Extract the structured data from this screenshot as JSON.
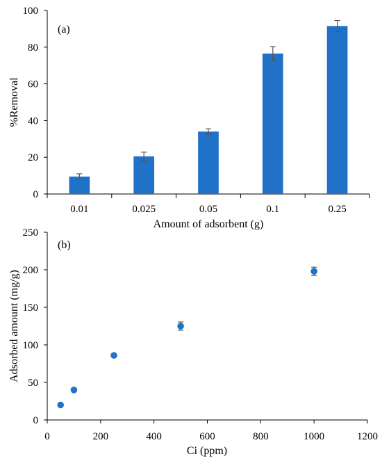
{
  "chart_data": [
    {
      "type": "bar",
      "panel_label": "(a)",
      "categories": [
        "0.01",
        "0.025",
        "0.05",
        "0.1",
        "0.25"
      ],
      "values": [
        9.5,
        20.5,
        34,
        76.5,
        91.5
      ],
      "errors": [
        1.5,
        2.3,
        1.5,
        3.8,
        3.0
      ],
      "ylabel": "%Removal",
      "xlabel": "Amount of adsorbent (g)",
      "ylim": [
        0,
        100
      ],
      "yticks": [
        "0",
        "20",
        "40",
        "60",
        "80",
        "100"
      ],
      "bar_color": "#1f72c8",
      "grid": false
    },
    {
      "type": "scatter",
      "panel_label": "(b)",
      "x": [
        50,
        100,
        250,
        500,
        1000
      ],
      "y": [
        20,
        40,
        86,
        125,
        198
      ],
      "errors": [
        0,
        0,
        0,
        5.5,
        5.5
      ],
      "ylabel": "Adsorbed amount (mg/g)",
      "xlabel": "Ci (ppm)",
      "xlim": [
        0,
        1200
      ],
      "ylim": [
        0,
        250
      ],
      "xticks": [
        "0",
        "200",
        "400",
        "600",
        "800",
        "1000",
        "1200"
      ],
      "yticks": [
        "0",
        "50",
        "100",
        "150",
        "200",
        "250"
      ],
      "marker_color": "#1f72c8",
      "grid": false
    }
  ]
}
